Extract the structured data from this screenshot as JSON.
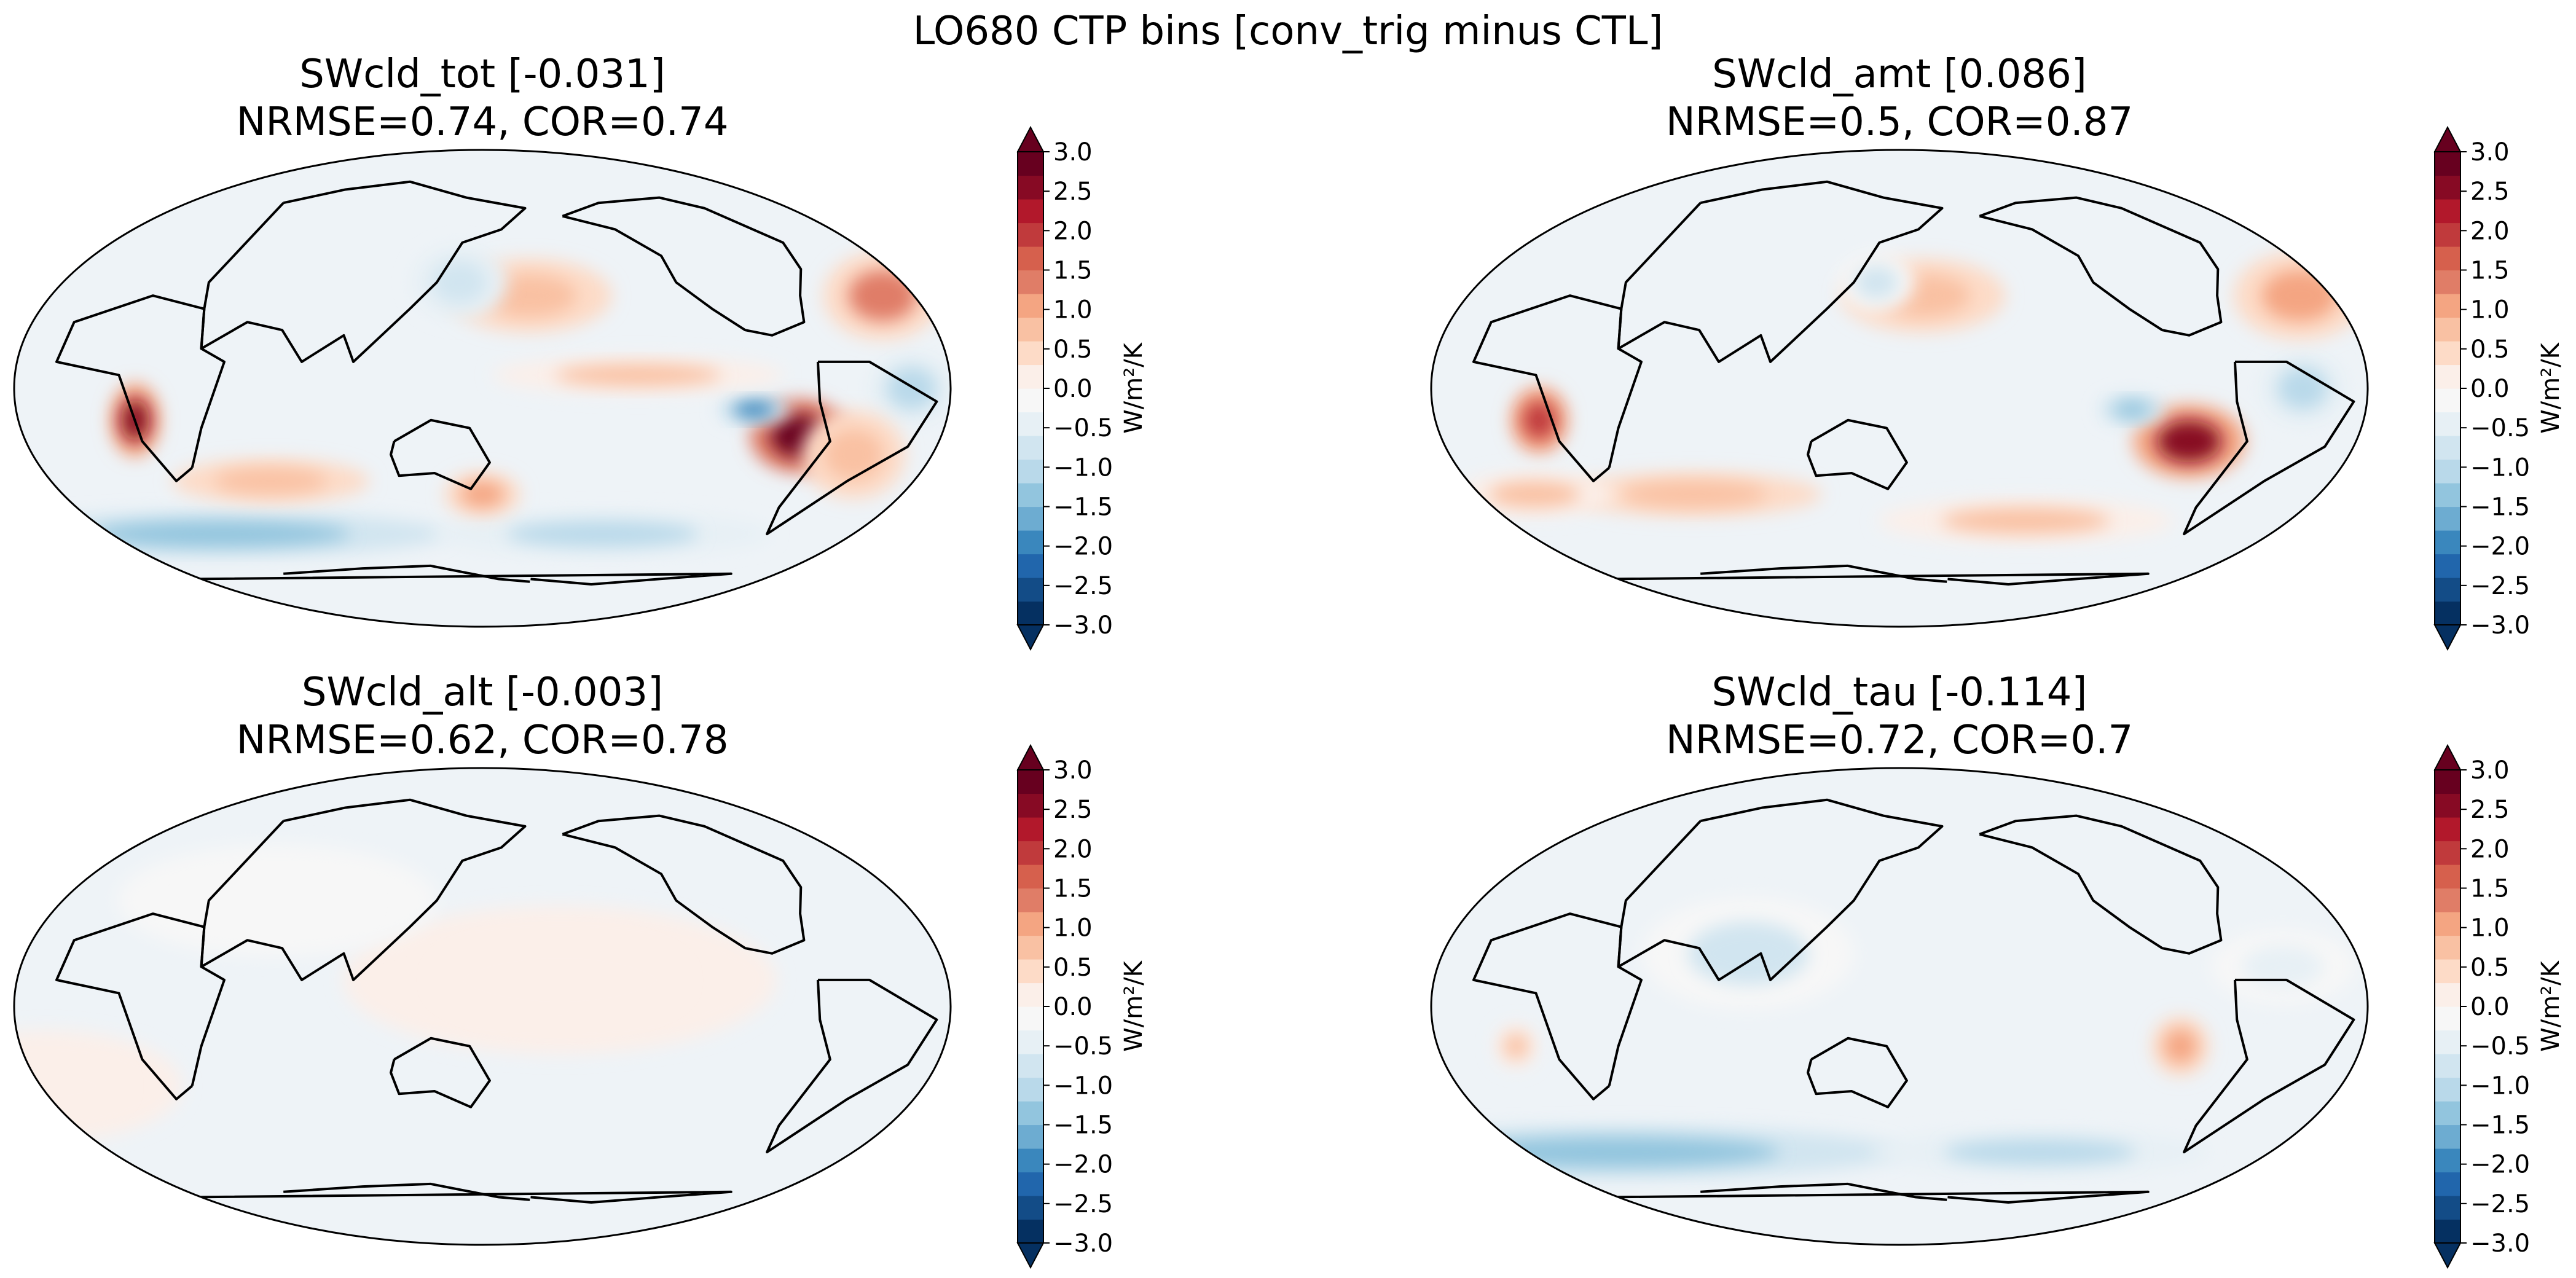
{
  "figure": {
    "suptitle": "LO680 CTP bins [conv_trig minus CTL]"
  },
  "colors": {
    "scale": [
      "#053061",
      "#134c87",
      "#2166ac",
      "#3a87bd",
      "#6dacd1",
      "#92c5de",
      "#b9d9ea",
      "#d1e5f0",
      "#e7f0f5",
      "#f7f7f7",
      "#fbefe9",
      "#fddbc7",
      "#f9c1a3",
      "#f4a582",
      "#e07d67",
      "#d6604d",
      "#c03a3c",
      "#b2182b",
      "#870a24",
      "#67001f"
    ],
    "land": "#000000",
    "background_field": "#eef3f7"
  },
  "chart_data": [
    {
      "type": "heatmap",
      "name": "SWcld_tot",
      "title_line1": "SWcld_tot [-0.031]",
      "title_line2": "NRMSE=0.74, COR=0.74",
      "colorbar_label": "W/m²/K",
      "levels": [
        -3.0,
        -2.5,
        -2.0,
        -1.5,
        -1.0,
        -0.5,
        0.0,
        0.5,
        1.0,
        1.5,
        2.0,
        2.5,
        3.0
      ],
      "level_labels": [
        "3.0",
        "2.5",
        "2.0",
        "1.5",
        "1.0",
        "0.5",
        "0.0",
        "−0.5",
        "−1.0",
        "−1.5",
        "−2.0",
        "−2.5",
        "−3.0"
      ],
      "vmin": -3.0,
      "vmax": 3.0,
      "features": [
        {
          "lon": -85,
          "lat": -18,
          "value": 3.0,
          "rx": 14,
          "ry": 10
        },
        {
          "lon": 15,
          "lat": -12,
          "value": 2.5,
          "rx": 7,
          "ry": 10
        },
        {
          "lon": -105,
          "lat": -8,
          "value": -2.0,
          "rx": 10,
          "ry": 4
        },
        {
          "lon": -45,
          "lat": 0,
          "value": -1.0,
          "rx": 12,
          "ry": 10
        },
        {
          "lon": -40,
          "lat": 35,
          "value": 1.2,
          "rx": 18,
          "ry": 12
        },
        {
          "lon": 170,
          "lat": 35,
          "value": 0.8,
          "rx": 25,
          "ry": 10
        },
        {
          "lon": -150,
          "lat": 5,
          "value": 0.6,
          "rx": 40,
          "ry": 5
        },
        {
          "lon": 20,
          "lat": -55,
          "value": -1.5,
          "rx": 80,
          "ry": 6
        },
        {
          "lon": -150,
          "lat": -55,
          "value": -1.0,
          "rx": 60,
          "ry": 6
        },
        {
          "lon": 140,
          "lat": 40,
          "value": -0.8,
          "rx": 15,
          "ry": 10
        },
        {
          "lon": 60,
          "lat": -35,
          "value": 0.7,
          "rx": 30,
          "ry": 6
        },
        {
          "lon": 150,
          "lat": -40,
          "value": 0.9,
          "rx": 12,
          "ry": 6
        },
        {
          "lon": -60,
          "lat": -25,
          "value": 0.8,
          "rx": 15,
          "ry": 12
        }
      ]
    },
    {
      "type": "heatmap",
      "name": "SWcld_amt",
      "title_line1": "SWcld_amt [0.086]",
      "title_line2": "NRMSE=0.5, COR=0.87",
      "colorbar_label": "W/m²/K",
      "levels": [
        -3.0,
        -2.5,
        -2.0,
        -1.5,
        -1.0,
        -0.5,
        0.0,
        0.5,
        1.0,
        1.5,
        2.0,
        2.5,
        3.0
      ],
      "level_labels": [
        "3.0",
        "2.5",
        "2.0",
        "1.5",
        "1.0",
        "0.5",
        "0.0",
        "−0.5",
        "−1.0",
        "−1.5",
        "−2.0",
        "−2.5",
        "−3.0"
      ],
      "vmin": -3.0,
      "vmax": 3.0,
      "features": [
        {
          "lon": -95,
          "lat": -20,
          "value": 2.5,
          "rx": 16,
          "ry": 10
        },
        {
          "lon": 10,
          "lat": -12,
          "value": 2.0,
          "rx": 8,
          "ry": 9
        },
        {
          "lon": -120,
          "lat": -8,
          "value": -1.5,
          "rx": 9,
          "ry": 4
        },
        {
          "lon": -55,
          "lat": 0,
          "value": -1.0,
          "rx": 12,
          "ry": 10
        },
        {
          "lon": -40,
          "lat": 35,
          "value": 0.9,
          "rx": 20,
          "ry": 12
        },
        {
          "lon": 160,
          "lat": 35,
          "value": 0.8,
          "rx": 25,
          "ry": 10
        },
        {
          "lon": 60,
          "lat": -40,
          "value": 0.8,
          "rx": 40,
          "ry": 6
        },
        {
          "lon": -150,
          "lat": -50,
          "value": 0.6,
          "rx": 50,
          "ry": 6
        },
        {
          "lon": -10,
          "lat": -40,
          "value": 0.6,
          "rx": 25,
          "ry": 6
        },
        {
          "lon": 140,
          "lat": 40,
          "value": -0.6,
          "rx": 12,
          "ry": 8
        }
      ]
    },
    {
      "type": "heatmap",
      "name": "SWcld_alt",
      "title_line1": "SWcld_alt [-0.003]",
      "title_line2": "NRMSE=0.62, COR=0.78",
      "colorbar_label": "W/m²/K",
      "levels": [
        -3.0,
        -2.5,
        -2.0,
        -1.5,
        -1.0,
        -0.5,
        0.0,
        0.5,
        1.0,
        1.5,
        2.0,
        2.5,
        3.0
      ],
      "level_labels": [
        "3.0",
        "2.5",
        "2.0",
        "1.5",
        "1.0",
        "0.5",
        "0.0",
        "−0.5",
        "−1.0",
        "−1.5",
        "−2.0",
        "−2.5",
        "−3.0"
      ],
      "vmin": -3.0,
      "vmax": 3.0,
      "features": [
        {
          "lon": 180,
          "lat": 10,
          "value": 0.2,
          "rx": 60,
          "ry": 20
        },
        {
          "lon": -30,
          "lat": -30,
          "value": 0.2,
          "rx": 40,
          "ry": 15
        },
        {
          "lon": 60,
          "lat": 40,
          "value": -0.3,
          "rx": 50,
          "ry": 15
        }
      ]
    },
    {
      "type": "heatmap",
      "name": "SWcld_tau",
      "title_line1": "SWcld_tau [-0.114]",
      "title_line2": "NRMSE=0.72, COR=0.7",
      "colorbar_label": "W/m²/K",
      "levels": [
        -3.0,
        -2.5,
        -2.0,
        -1.5,
        -1.0,
        -0.5,
        0.0,
        0.5,
        1.0,
        1.5,
        2.0,
        2.5,
        3.0
      ],
      "level_labels": [
        "3.0",
        "2.5",
        "2.0",
        "1.5",
        "1.0",
        "0.5",
        "0.0",
        "−0.5",
        "−1.0",
        "−1.5",
        "−2.0",
        "−2.5",
        "−3.0"
      ],
      "vmin": -3.0,
      "vmax": 3.0,
      "features": [
        {
          "lon": 10,
          "lat": -55,
          "value": -1.5,
          "rx": 100,
          "ry": 7
        },
        {
          "lon": -140,
          "lat": -55,
          "value": -1.0,
          "rx": 60,
          "ry": 6
        },
        {
          "lon": -100,
          "lat": -15,
          "value": 0.9,
          "rx": 8,
          "ry": 8
        },
        {
          "lon": 0,
          "lat": -15,
          "value": 0.6,
          "rx": 6,
          "ry": 6
        },
        {
          "lon": 90,
          "lat": 20,
          "value": -0.6,
          "rx": 30,
          "ry": 15
        },
        {
          "lon": -60,
          "lat": 15,
          "value": -0.5,
          "rx": 20,
          "ry": 10
        }
      ]
    }
  ]
}
